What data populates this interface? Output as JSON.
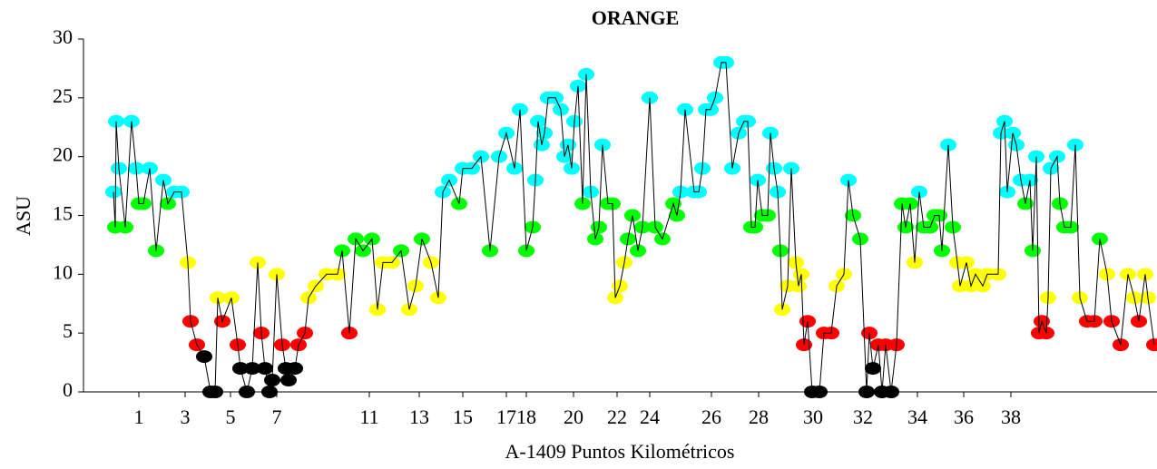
{
  "chart_data": {
    "type": "line",
    "title": "ORANGE",
    "xlabel": "A-1409 Puntos Kilométricos",
    "ylabel": "ASU",
    "xlim": [
      0,
      1183
    ],
    "ylim": [
      0,
      30
    ],
    "yticks": [
      0,
      5,
      10,
      15,
      20,
      25,
      30
    ],
    "xticks": [
      {
        "value": 61,
        "label": "1"
      },
      {
        "value": 112,
        "label": "3"
      },
      {
        "value": 162,
        "label": "5"
      },
      {
        "value": 213,
        "label": "7"
      },
      {
        "value": 315,
        "label": "11"
      },
      {
        "value": 370,
        "label": "13"
      },
      {
        "value": 418,
        "label": "15"
      },
      {
        "value": 466,
        "label": "17"
      },
      {
        "value": 488,
        "label": "18"
      },
      {
        "value": 540,
        "label": "20"
      },
      {
        "value": 588,
        "label": "22"
      },
      {
        "value": 624,
        "label": "24"
      },
      {
        "value": 692,
        "label": "26"
      },
      {
        "value": 744,
        "label": "28"
      },
      {
        "value": 804,
        "label": "30"
      },
      {
        "value": 859,
        "label": "32"
      },
      {
        "value": 919,
        "label": "34"
      },
      {
        "value": 970,
        "label": "36"
      },
      {
        "value": 1022,
        "label": "38"
      }
    ],
    "line_color": "#000000",
    "color_bands": [
      {
        "min": 17,
        "color": "#00ffff"
      },
      {
        "min": 12,
        "color": "#00ff00"
      },
      {
        "min": 7,
        "color": "#ffff00"
      },
      {
        "min": 4,
        "color": "#ff0000"
      },
      {
        "min": 0,
        "color": "#000000"
      }
    ],
    "x": [
      33,
      35,
      36,
      39,
      46,
      53,
      58,
      61,
      66,
      73,
      80,
      88,
      93,
      100,
      108,
      115,
      118,
      125,
      133,
      140,
      145,
      148,
      153,
      163,
      170,
      173,
      180,
      186,
      192,
      196,
      200,
      205,
      208,
      213,
      219,
      223,
      226,
      233,
      237,
      244,
      248,
      256,
      268,
      280,
      285,
      293,
      300,
      308,
      318,
      324,
      330,
      340,
      350,
      359,
      366,
      373,
      383,
      391,
      396,
      403,
      414,
      418,
      428,
      438,
      448,
      458,
      466,
      475,
      481,
      488,
      495,
      498,
      501,
      505,
      508,
      512,
      520,
      526,
      530,
      534,
      538,
      541,
      545,
      550,
      554,
      559,
      564,
      568,
      572,
      578,
      583,
      586,
      591,
      596,
      600,
      605,
      611,
      616,
      624,
      630,
      638,
      650,
      654,
      658,
      663,
      673,
      678,
      682,
      686,
      691,
      696,
      703,
      708,
      715,
      722,
      728,
      732,
      736,
      740,
      743,
      748,
      754,
      757,
      761,
      765,
      768,
      770,
      776,
      780,
      785,
      788,
      791,
      794,
      798,
      803,
      811,
      816,
      824,
      830,
      838,
      843,
      848,
      856,
      863,
      866,
      870,
      876,
      880,
      884,
      890,
      896,
      902,
      906,
      911,
      916,
      921,
      926,
      933,
      938,
      943,
      946,
      953,
      958,
      963,
      966,
      973,
      978,
      983,
      991,
      996,
      1008,
      1011,
      1015,
      1018,
      1024,
      1028,
      1033,
      1038,
      1043,
      1046,
      1050,
      1053,
      1056,
      1061,
      1063,
      1066,
      1073,
      1076,
      1081,
      1088,
      1093,
      1098,
      1106,
      1114,
      1120,
      1128,
      1133,
      1143,
      1151,
      1158,
      1163,
      1170,
      1173,
      1180
    ],
    "values": [
      17,
      14,
      23,
      19,
      14,
      23,
      19,
      16,
      16,
      19,
      12,
      18,
      16,
      17,
      17,
      11,
      6,
      4,
      3,
      0,
      0,
      8,
      6,
      8,
      4,
      2,
      0,
      2,
      11,
      5,
      2,
      0,
      1,
      10,
      4,
      2,
      1,
      2,
      4,
      5,
      8,
      9,
      10,
      10,
      12,
      5,
      13,
      12,
      13,
      7,
      11,
      11,
      12,
      7,
      9,
      13,
      11,
      8,
      17,
      18,
      16,
      19,
      19,
      20,
      12,
      20,
      22,
      19,
      24,
      12,
      14,
      18,
      23,
      21,
      22,
      25,
      25,
      24,
      20,
      21,
      19,
      23,
      26,
      16,
      27,
      17,
      13,
      14,
      21,
      16,
      16,
      8,
      9,
      11,
      13,
      15,
      12,
      14,
      25,
      14,
      13,
      16,
      15,
      17,
      24,
      17,
      17,
      19,
      24,
      24,
      25,
      28,
      28,
      19,
      22,
      23,
      23,
      14,
      14,
      18,
      15,
      15,
      22,
      19,
      17,
      12,
      7,
      9,
      19,
      11,
      9,
      10,
      4,
      6,
      0,
      0,
      5,
      5,
      9,
      10,
      18,
      15,
      13,
      0,
      5,
      2,
      4,
      0,
      4,
      0,
      4,
      16,
      14,
      16,
      11,
      17,
      14,
      14,
      15,
      15,
      12,
      21,
      14,
      11,
      9,
      11,
      9,
      10,
      9,
      10,
      10,
      22,
      23,
      17,
      22,
      21,
      18,
      16,
      18,
      12,
      20,
      5,
      6,
      5,
      8,
      19,
      20,
      16,
      14,
      14,
      21,
      8,
      6,
      6,
      13,
      10,
      6,
      4,
      10,
      8,
      6,
      10,
      8,
      4
    ]
  }
}
